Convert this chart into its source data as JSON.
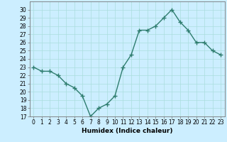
{
  "x": [
    0,
    1,
    2,
    3,
    4,
    5,
    6,
    7,
    8,
    9,
    10,
    11,
    12,
    13,
    14,
    15,
    16,
    17,
    18,
    19,
    20,
    21,
    22,
    23
  ],
  "y": [
    23,
    22.5,
    22.5,
    22,
    21,
    20.5,
    19.5,
    17,
    18,
    18.5,
    19.5,
    23,
    24.5,
    27.5,
    27.5,
    28,
    29,
    30,
    28.5,
    27.5,
    26,
    26,
    25,
    24.5
  ],
  "line_color": "#2e7d6e",
  "marker": "+",
  "bg_color": "#cceeff",
  "grid_color": "#aadddd",
  "xlabel": "Humidex (Indice chaleur)",
  "ylim": [
    17,
    31
  ],
  "yticks": [
    17,
    18,
    19,
    20,
    21,
    22,
    23,
    24,
    25,
    26,
    27,
    28,
    29,
    30
  ],
  "xticks": [
    0,
    1,
    2,
    3,
    4,
    5,
    6,
    7,
    8,
    9,
    10,
    11,
    12,
    13,
    14,
    15,
    16,
    17,
    18,
    19,
    20,
    21,
    22,
    23
  ],
  "tick_fontsize": 5.5,
  "label_fontsize": 6.5,
  "line_width": 1.0,
  "marker_size": 4
}
